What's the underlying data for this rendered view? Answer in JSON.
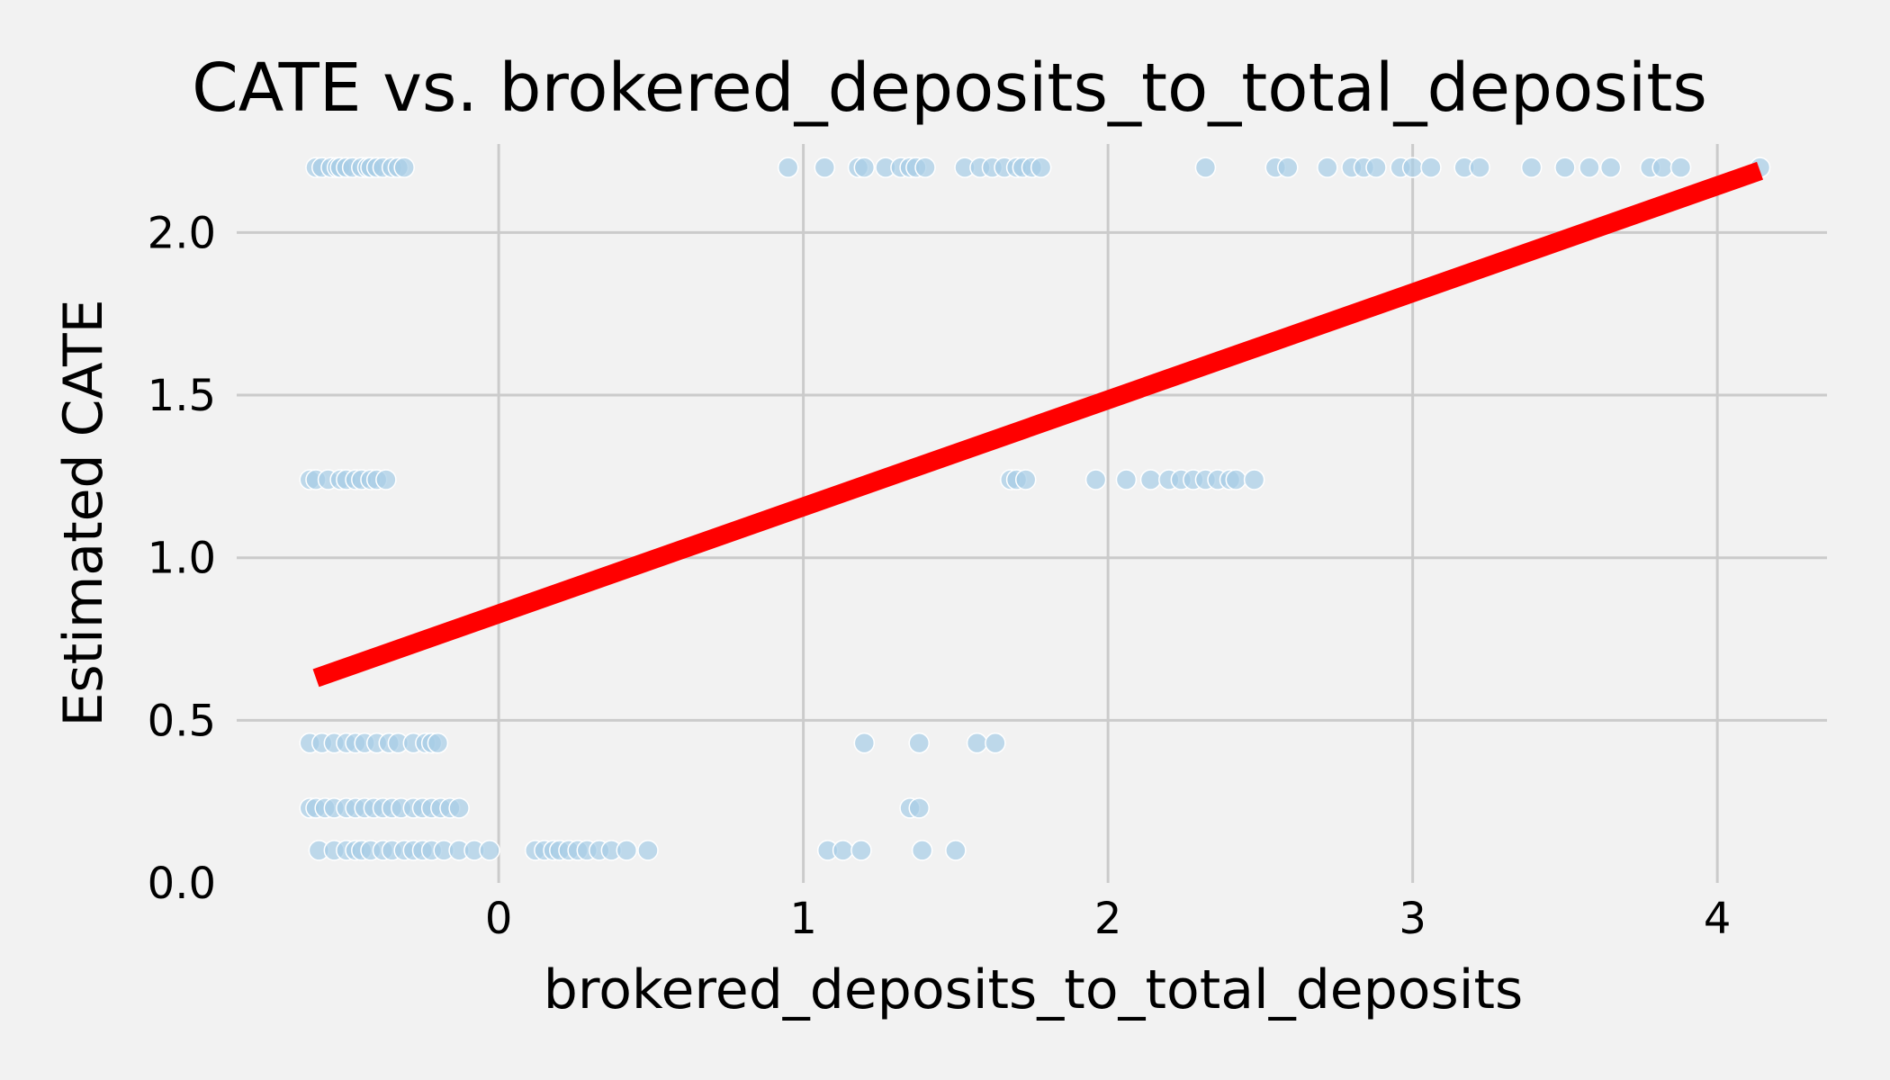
{
  "chart_data": {
    "type": "scatter",
    "title": "CATE vs. brokered_deposits_to_total_deposits",
    "xlabel": "brokered_deposits_to_total_deposits",
    "ylabel": "Estimated CATE",
    "xlim": [
      -0.86,
      4.36
    ],
    "ylim": [
      0.0,
      2.3
    ],
    "xticks": [
      0,
      1,
      2,
      3,
      4
    ],
    "yticks": [
      0.0,
      0.5,
      1.0,
      1.5,
      2.0
    ],
    "xtick_labels": [
      "0",
      "1",
      "2",
      "3",
      "4"
    ],
    "ytick_labels": [
      "0.0",
      "0.5",
      "1.0",
      "1.5",
      "2.0"
    ],
    "grid": true,
    "colors": {
      "points": "#a8cde6",
      "trend": "#ff0000",
      "grid": "#cbcbcb",
      "background": "#f2f2f2"
    },
    "series": [
      {
        "kind": "scatter",
        "points": [
          [
            -0.6,
            2.2
          ],
          [
            -0.58,
            2.2
          ],
          [
            -0.55,
            2.2
          ],
          [
            -0.53,
            2.2
          ],
          [
            -0.52,
            2.2
          ],
          [
            -0.5,
            2.2
          ],
          [
            -0.48,
            2.2
          ],
          [
            -0.45,
            2.2
          ],
          [
            -0.43,
            2.2
          ],
          [
            -0.42,
            2.2
          ],
          [
            -0.4,
            2.2
          ],
          [
            -0.38,
            2.2
          ],
          [
            -0.35,
            2.2
          ],
          [
            -0.33,
            2.2
          ],
          [
            -0.31,
            2.2
          ],
          [
            0.95,
            2.2
          ],
          [
            1.07,
            2.2
          ],
          [
            1.18,
            2.2
          ],
          [
            1.2,
            2.2
          ],
          [
            1.27,
            2.2
          ],
          [
            1.32,
            2.2
          ],
          [
            1.35,
            2.2
          ],
          [
            1.37,
            2.2
          ],
          [
            1.4,
            2.2
          ],
          [
            1.53,
            2.2
          ],
          [
            1.58,
            2.2
          ],
          [
            1.62,
            2.2
          ],
          [
            1.66,
            2.2
          ],
          [
            1.7,
            2.2
          ],
          [
            1.72,
            2.2
          ],
          [
            1.75,
            2.2
          ],
          [
            1.78,
            2.2
          ],
          [
            2.32,
            2.2
          ],
          [
            2.55,
            2.2
          ],
          [
            2.59,
            2.2
          ],
          [
            2.72,
            2.2
          ],
          [
            2.8,
            2.2
          ],
          [
            2.84,
            2.2
          ],
          [
            2.88,
            2.2
          ],
          [
            2.96,
            2.2
          ],
          [
            3.0,
            2.2
          ],
          [
            3.06,
            2.2
          ],
          [
            3.17,
            2.2
          ],
          [
            3.22,
            2.2
          ],
          [
            3.39,
            2.2
          ],
          [
            3.5,
            2.2
          ],
          [
            3.58,
            2.2
          ],
          [
            3.65,
            2.2
          ],
          [
            3.78,
            2.2
          ],
          [
            3.82,
            2.2
          ],
          [
            3.88,
            2.2
          ],
          [
            4.14,
            2.2
          ],
          [
            -0.62,
            1.24
          ],
          [
            -0.6,
            1.24
          ],
          [
            -0.56,
            1.24
          ],
          [
            -0.52,
            1.24
          ],
          [
            -0.5,
            1.24
          ],
          [
            -0.47,
            1.24
          ],
          [
            -0.45,
            1.24
          ],
          [
            -0.42,
            1.24
          ],
          [
            -0.4,
            1.24
          ],
          [
            -0.37,
            1.24
          ],
          [
            1.68,
            1.24
          ],
          [
            1.7,
            1.24
          ],
          [
            1.73,
            1.24
          ],
          [
            1.96,
            1.24
          ],
          [
            2.06,
            1.24
          ],
          [
            2.14,
            1.24
          ],
          [
            2.2,
            1.24
          ],
          [
            2.24,
            1.24
          ],
          [
            2.28,
            1.24
          ],
          [
            2.32,
            1.24
          ],
          [
            2.36,
            1.24
          ],
          [
            2.4,
            1.24
          ],
          [
            2.42,
            1.24
          ],
          [
            2.48,
            1.24
          ],
          [
            -0.62,
            0.43
          ],
          [
            -0.58,
            0.43
          ],
          [
            -0.54,
            0.43
          ],
          [
            -0.5,
            0.43
          ],
          [
            -0.47,
            0.43
          ],
          [
            -0.44,
            0.43
          ],
          [
            -0.4,
            0.43
          ],
          [
            -0.36,
            0.43
          ],
          [
            -0.33,
            0.43
          ],
          [
            -0.28,
            0.43
          ],
          [
            -0.24,
            0.43
          ],
          [
            -0.22,
            0.43
          ],
          [
            -0.2,
            0.43
          ],
          [
            1.2,
            0.43
          ],
          [
            1.38,
            0.43
          ],
          [
            1.57,
            0.43
          ],
          [
            1.63,
            0.43
          ],
          [
            -0.62,
            0.23
          ],
          [
            -0.6,
            0.23
          ],
          [
            -0.57,
            0.23
          ],
          [
            -0.54,
            0.23
          ],
          [
            -0.5,
            0.23
          ],
          [
            -0.47,
            0.23
          ],
          [
            -0.44,
            0.23
          ],
          [
            -0.41,
            0.23
          ],
          [
            -0.38,
            0.23
          ],
          [
            -0.35,
            0.23
          ],
          [
            -0.32,
            0.23
          ],
          [
            -0.28,
            0.23
          ],
          [
            -0.25,
            0.23
          ],
          [
            -0.22,
            0.23
          ],
          [
            -0.19,
            0.23
          ],
          [
            -0.16,
            0.23
          ],
          [
            -0.13,
            0.23
          ],
          [
            1.35,
            0.23
          ],
          [
            1.38,
            0.23
          ],
          [
            -0.59,
            0.1
          ],
          [
            -0.54,
            0.1
          ],
          [
            -0.5,
            0.1
          ],
          [
            -0.47,
            0.1
          ],
          [
            -0.45,
            0.1
          ],
          [
            -0.42,
            0.1
          ],
          [
            -0.38,
            0.1
          ],
          [
            -0.35,
            0.1
          ],
          [
            -0.31,
            0.1
          ],
          [
            -0.28,
            0.1
          ],
          [
            -0.25,
            0.1
          ],
          [
            -0.22,
            0.1
          ],
          [
            -0.18,
            0.1
          ],
          [
            -0.13,
            0.1
          ],
          [
            -0.08,
            0.1
          ],
          [
            -0.03,
            0.1
          ],
          [
            0.12,
            0.1
          ],
          [
            0.15,
            0.1
          ],
          [
            0.18,
            0.1
          ],
          [
            0.2,
            0.1
          ],
          [
            0.23,
            0.1
          ],
          [
            0.26,
            0.1
          ],
          [
            0.29,
            0.1
          ],
          [
            0.33,
            0.1
          ],
          [
            0.37,
            0.1
          ],
          [
            0.42,
            0.1
          ],
          [
            0.49,
            0.1
          ],
          [
            1.08,
            0.1
          ],
          [
            1.13,
            0.1
          ],
          [
            1.19,
            0.1
          ],
          [
            1.39,
            0.1
          ],
          [
            1.5,
            0.1
          ]
        ]
      },
      {
        "kind": "line",
        "x": [
          -0.6,
          4.14
        ],
        "y": [
          0.63,
          2.19
        ]
      }
    ]
  }
}
